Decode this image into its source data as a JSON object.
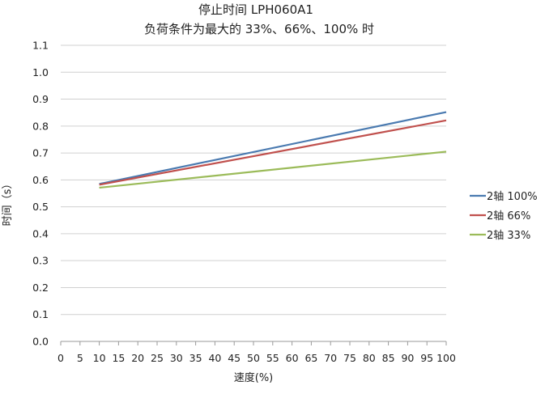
{
  "chart_data": {
    "type": "line",
    "title": "停止时间 LPH060A1",
    "subtitle": "负荷条件为最大的 33%、66%、100% 时",
    "xlabel": "速度(%)",
    "ylabel": "时间（s）",
    "xlim": [
      0,
      100
    ],
    "ylim": [
      0.0,
      1.1
    ],
    "x_ticks": [
      0,
      5,
      10,
      15,
      20,
      25,
      30,
      35,
      40,
      45,
      50,
      55,
      60,
      65,
      70,
      75,
      80,
      85,
      90,
      95,
      100
    ],
    "y_ticks": [
      "0.0",
      "0.1",
      "0.2",
      "0.3",
      "0.4",
      "0.5",
      "0.6",
      "0.7",
      "0.8",
      "0.9",
      "1.0",
      "1.1"
    ],
    "grid": true,
    "legend_position": "right",
    "series": [
      {
        "name": "2轴  100%",
        "color": "#4a7ab0",
        "x": [
          10,
          100
        ],
        "y": [
          0.585,
          0.852
        ]
      },
      {
        "name": "2轴  66%",
        "color": "#c0504d",
        "x": [
          10,
          100
        ],
        "y": [
          0.582,
          0.821
        ]
      },
      {
        "name": "2轴  33%",
        "color": "#9bbb59",
        "x": [
          10,
          100
        ],
        "y": [
          0.571,
          0.705
        ]
      }
    ]
  }
}
